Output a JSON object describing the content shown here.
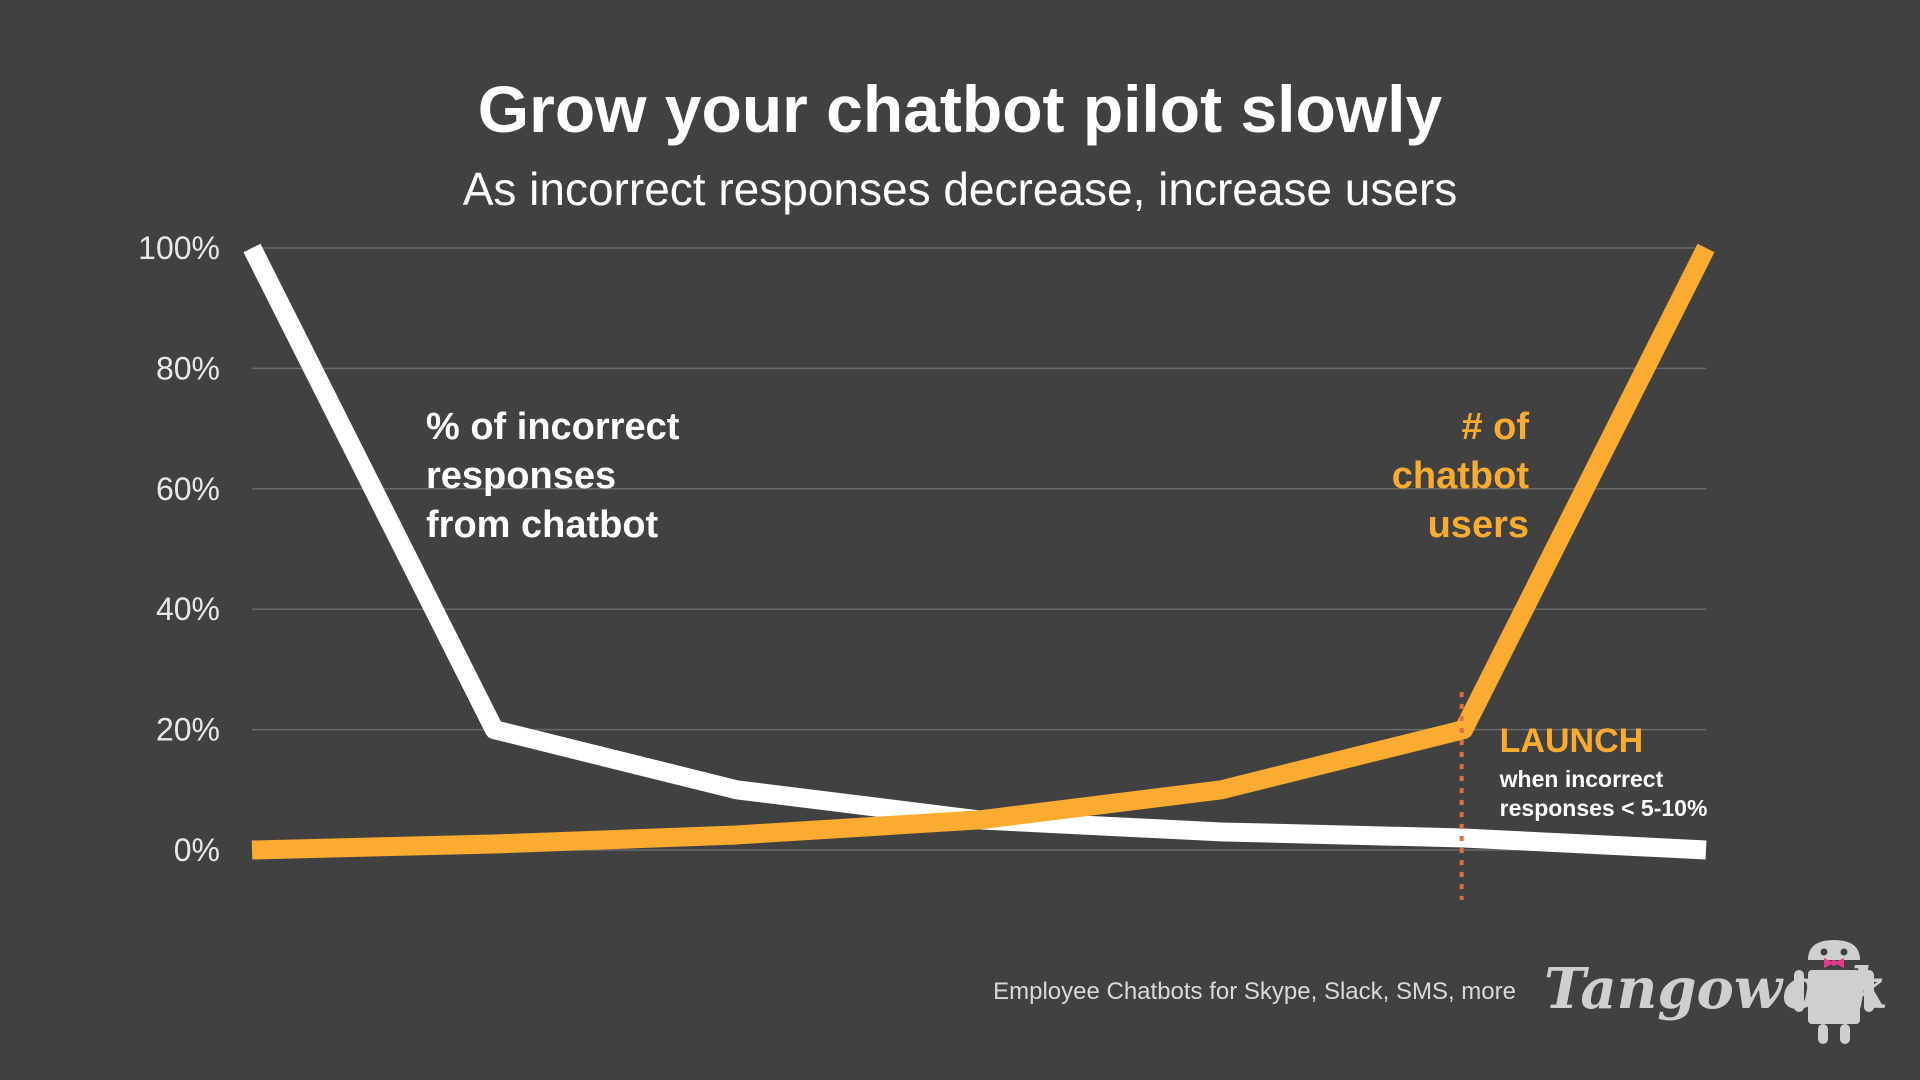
{
  "colors": {
    "background": "#414141",
    "text": "#ffffff",
    "incorrect_series": "#ffffff",
    "users_series": "#fbac30",
    "launch_line": "#d96f43",
    "gridline": "#6a6a6a",
    "axis_text": "#e8e8e8",
    "footer_text": "#d9d9d9",
    "bowtie": "#e5398c",
    "robot": "#cfcfcf"
  },
  "footer": {
    "tagline": "Employee Chatbots for Skype, Slack, SMS, more",
    "brand": "Tangowork",
    "logo_icon": "robot-mascot-icon"
  },
  "chart_data": {
    "type": "line",
    "title": "Grow your chatbot pilot slowly",
    "subtitle": "As incorrect responses decrease, increase users",
    "xlabel": "",
    "ylabel": "",
    "x": [
      0,
      1,
      2,
      3,
      4,
      5,
      6
    ],
    "ylim": [
      0,
      100
    ],
    "yticks": [
      0,
      20,
      40,
      60,
      80,
      100
    ],
    "ytick_labels": [
      "0%",
      "20%",
      "40%",
      "60%",
      "80%",
      "100%"
    ],
    "grid": true,
    "series": [
      {
        "name": "% of incorrect responses from chatbot",
        "label_lines": [
          "% of incorrect",
          "responses",
          "from chatbot"
        ],
        "color": "#ffffff",
        "values": [
          100,
          20,
          10,
          5,
          3,
          2,
          0
        ]
      },
      {
        "name": "# of chatbot users",
        "label_lines": [
          "# of",
          "chatbot",
          "users"
        ],
        "color": "#fbac30",
        "values": [
          0,
          1,
          2.5,
          5,
          10,
          20,
          100
        ]
      }
    ],
    "annotations": [
      {
        "x": 5,
        "title": "LAUNCH",
        "text_lines": [
          "when incorrect",
          "responses < 5-10%"
        ]
      }
    ]
  }
}
